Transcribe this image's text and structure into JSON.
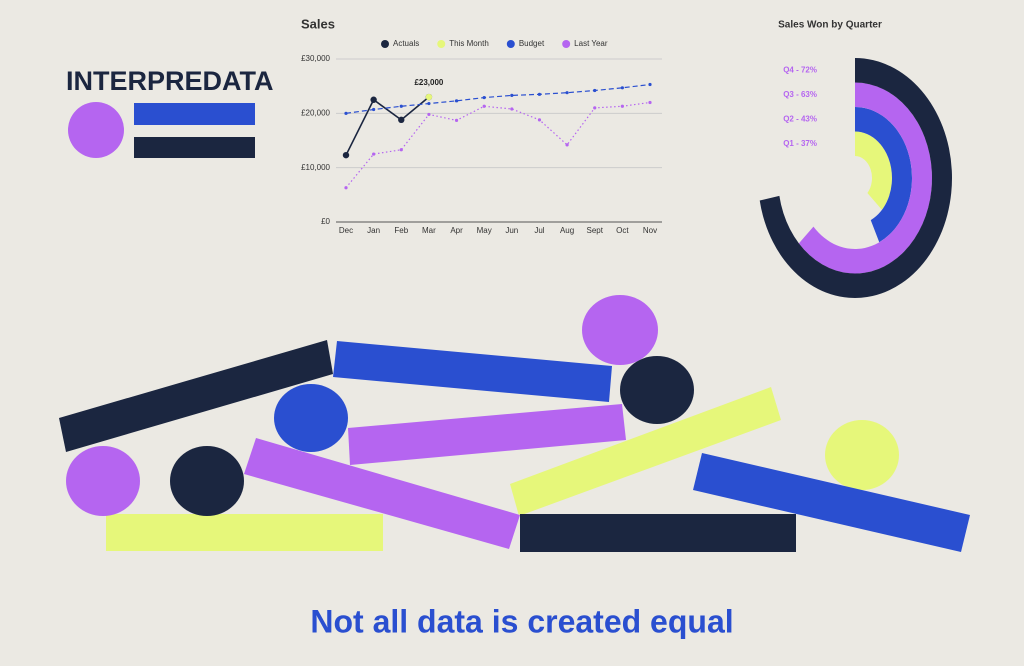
{
  "logo": "INTERPREDATA",
  "tagline": "Not all data is created equal",
  "chart_data": [
    {
      "type": "line",
      "title": "Sales",
      "categories": [
        "Dec",
        "Jan",
        "Feb",
        "Mar",
        "Apr",
        "May",
        "Jun",
        "Jul",
        "Aug",
        "Sept",
        "Oct",
        "Nov"
      ],
      "series": [
        {
          "name": "Actuals",
          "color": "#1b2640",
          "style": "solid",
          "values": [
            12300,
            22500,
            18800,
            23000,
            null,
            null,
            null,
            null,
            null,
            null,
            null,
            null
          ]
        },
        {
          "name": "This Month",
          "color": "#e6f77a",
          "style": "none",
          "values": [
            null,
            null,
            null,
            23000,
            null,
            null,
            null,
            null,
            null,
            null,
            null,
            null
          ],
          "value_labels": [
            null,
            null,
            null,
            "£23,000",
            null,
            null,
            null,
            null,
            null,
            null,
            null,
            null
          ]
        },
        {
          "name": "Budget",
          "color": "#2a4fd0",
          "style": "dashed",
          "values": [
            20000,
            20700,
            21300,
            21800,
            22300,
            22900,
            23300,
            23500,
            23800,
            24200,
            24700,
            25300
          ]
        },
        {
          "name": "Last Year",
          "color": "#b565f0",
          "style": "dotted",
          "values": [
            6300,
            12500,
            13300,
            19800,
            18700,
            21300,
            20800,
            18800,
            14200,
            21000,
            21300,
            22000
          ]
        }
      ],
      "ylim": [
        0,
        30000
      ],
      "yticks": [
        {
          "value": 0,
          "label": "£0"
        },
        {
          "value": 10000,
          "label": "£10,000"
        },
        {
          "value": 20000,
          "label": "£20,000"
        },
        {
          "value": 30000,
          "label": "£30,000"
        }
      ],
      "grid": true,
      "legend": "top"
    },
    {
      "type": "radial_bar",
      "title": "Sales Won by Quarter",
      "categories": [
        "Q1 - 37%",
        "Q2 - 43%",
        "Q3 - 63%",
        "Q4 - 72%"
      ],
      "values": [
        37,
        43,
        63,
        72
      ],
      "colors": [
        "#e6f77a",
        "#2a4fd0",
        "#b565f0",
        "#1b2640"
      ]
    }
  ]
}
